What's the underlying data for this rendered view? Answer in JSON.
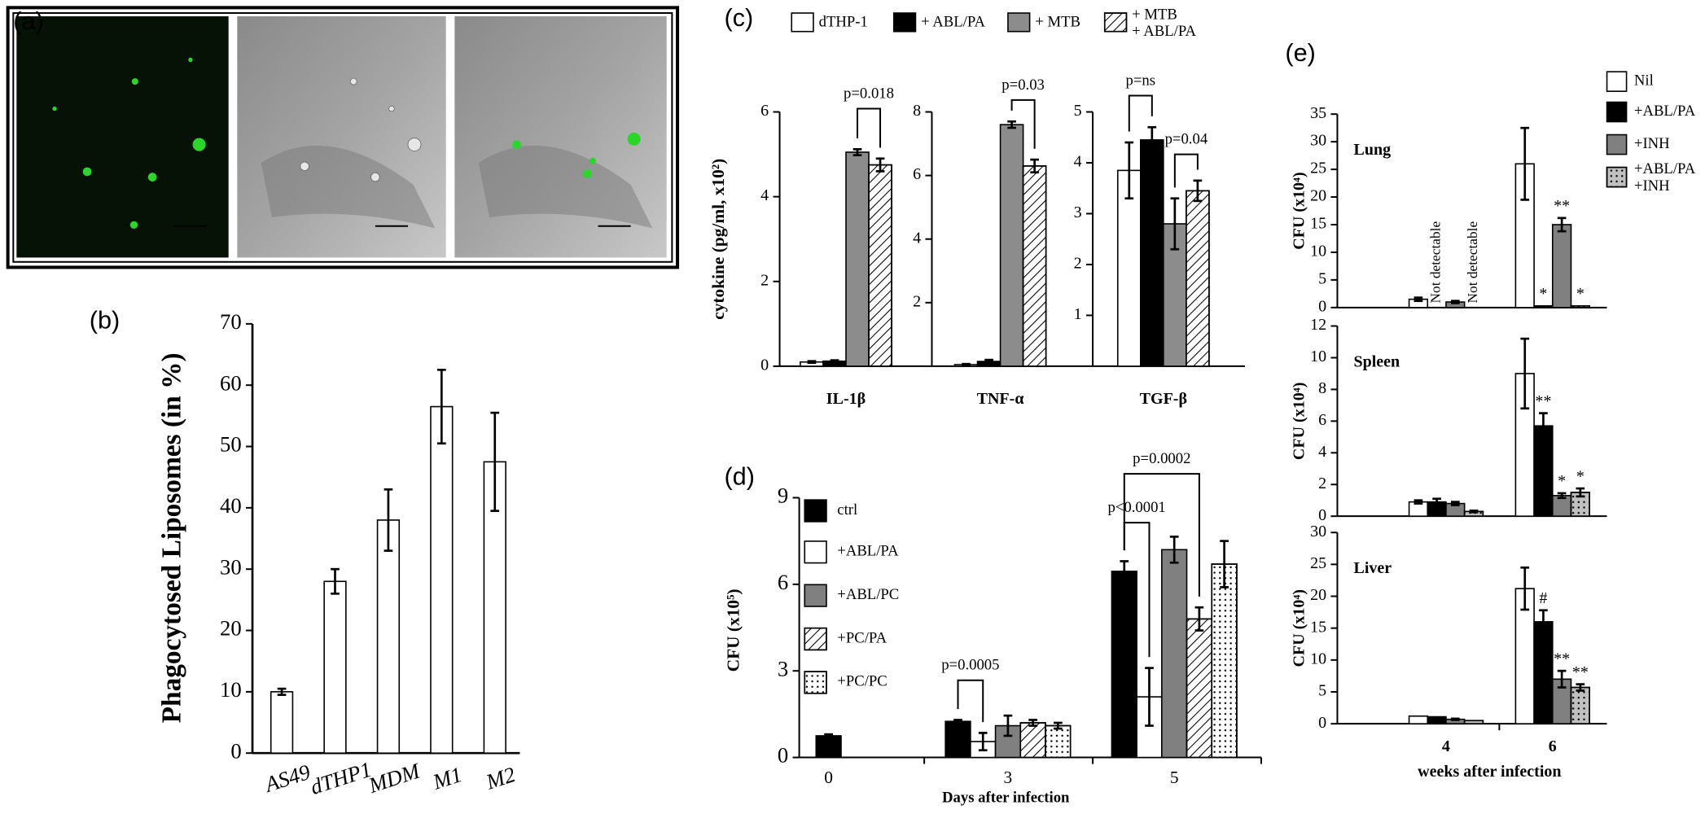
{
  "image_panel": {
    "label": "(a)"
  },
  "chart_data": [
    {
      "type": "bar",
      "panel_label": "(b)",
      "ylabel": "Phagocytosed Liposomes (in %)",
      "categories": [
        "AS49",
        "dTHP1",
        "MDM",
        "M1",
        "M2"
      ],
      "values": [
        10,
        28,
        38,
        56.5,
        47.5
      ],
      "errors": [
        0.5,
        2,
        5,
        6,
        8
      ],
      "color": "#ffffff",
      "ylim": [
        0,
        70
      ],
      "yticks": [
        0,
        10,
        20,
        30,
        40,
        50,
        60,
        70
      ]
    },
    {
      "type": "bar",
      "panel_label": "(c)",
      "ylabel": "cytokine (pg/ml, x10²)",
      "categories": [
        "IL-1β",
        "TNF-α",
        "TGF-β"
      ],
      "axes": [
        {
          "ylim": [
            0,
            6
          ],
          "yticks": [
            0,
            2,
            4,
            6
          ]
        },
        {
          "ylim": [
            0,
            8
          ],
          "yticks": [
            2,
            4,
            6,
            8
          ]
        },
        {
          "ylim": [
            0,
            5
          ],
          "yticks": [
            1,
            2,
            3,
            4,
            5
          ]
        }
      ],
      "series": [
        {
          "name": "dTHP-1",
          "color": "#ffffff",
          "values": [
            0.1,
            0.05,
            3.85
          ],
          "errors": [
            0.02,
            0.02,
            0.55
          ]
        },
        {
          "name": "+ ABL/PA",
          "color": "#000000",
          "values": [
            0.12,
            0.15,
            4.45
          ],
          "errors": [
            0.02,
            0.05,
            0.25
          ]
        },
        {
          "name": "+ MTB",
          "color": "#8c8c8c",
          "values": [
            5.05,
            7.6,
            2.8
          ],
          "errors": [
            0.07,
            0.1,
            0.5
          ]
        },
        {
          "name": "+ MTB\n+ ABL/PA",
          "color": "#ffffff",
          "pattern": "hatch",
          "values": [
            4.75,
            6.3,
            3.45
          ],
          "errors": [
            0.15,
            0.2,
            0.2
          ]
        }
      ],
      "annotations": [
        "p=0.018",
        "p=0.03",
        "p=ns",
        "p=0.04"
      ]
    },
    {
      "type": "bar",
      "panel_label": "(d)",
      "ylabel": "CFU (x10⁵)",
      "xlabel": "Days after infection",
      "categories": [
        "0",
        "3",
        "5"
      ],
      "ylim": [
        0,
        9
      ],
      "yticks": [
        0,
        3,
        6,
        9
      ],
      "series": [
        {
          "name": "ctrl",
          "color": "#000000",
          "values": [
            0.75,
            1.25,
            6.45
          ],
          "errors": [
            0.05,
            0.05,
            0.35
          ]
        },
        {
          "name": "+ABL/PA",
          "color": "#ffffff",
          "values": [
            null,
            0.55,
            2.1
          ],
          "errors": [
            null,
            0.3,
            1.0
          ]
        },
        {
          "name": "+ABL/PC",
          "color": "#808080",
          "values": [
            null,
            1.1,
            7.2
          ],
          "errors": [
            null,
            0.35,
            0.45
          ]
        },
        {
          "name": "+PC/PA",
          "color": "#ffffff",
          "pattern": "hatch",
          "values": [
            null,
            1.2,
            4.8
          ],
          "errors": [
            null,
            0.1,
            0.4
          ]
        },
        {
          "name": "+PC/PC",
          "color": "#ffffff",
          "pattern": "dots",
          "values": [
            null,
            1.1,
            6.7
          ],
          "errors": [
            null,
            0.1,
            0.8
          ]
        }
      ],
      "annotations": [
        "p=0.0005",
        "p<0.0001",
        "p=0.0002"
      ]
    },
    {
      "type": "bar",
      "panel_label": "(e)",
      "xlabel": "weeks after infection",
      "categories": [
        "4",
        "6"
      ],
      "series": [
        {
          "name": "Nil",
          "color": "#ffffff"
        },
        {
          "name": "+ABL/PA",
          "color": "#000000"
        },
        {
          "name": "+INH",
          "color": "#808080"
        },
        {
          "name": "+ABL/PA\n+INH",
          "color": "#c0c0c0",
          "pattern": "dots"
        }
      ],
      "subplots": [
        {
          "title": "Lung",
          "ylabel": "CFU (x10⁴)",
          "ylim": [
            0,
            35
          ],
          "yticks": [
            0,
            5,
            10,
            15,
            20,
            25,
            30,
            35
          ],
          "series": [
            {
              "values": [
                1.5,
                26
              ],
              "errors": [
                0.3,
                6.5
              ],
              "notes": [
                null,
                null
              ]
            },
            {
              "values": [
                null,
                0.3
              ],
              "errors": [
                null,
                null
              ],
              "notes": [
                "Not detectable",
                "*"
              ]
            },
            {
              "values": [
                1,
                15
              ],
              "errors": [
                0.2,
                1.2
              ],
              "notes": [
                null,
                "**"
              ]
            },
            {
              "values": [
                null,
                0.3
              ],
              "errors": [
                null,
                null
              ],
              "notes": [
                "Not detectable",
                "*"
              ]
            }
          ]
        },
        {
          "title": "Spleen",
          "ylabel": "CFU (x10⁴)",
          "ylim": [
            0,
            12
          ],
          "yticks": [
            0,
            2,
            4,
            6,
            8,
            10,
            12
          ],
          "series": [
            {
              "values": [
                0.9,
                9
              ],
              "errors": [
                0.1,
                2.2
              ],
              "notes": [
                null,
                null
              ]
            },
            {
              "values": [
                0.9,
                5.7
              ],
              "errors": [
                0.2,
                0.8
              ],
              "notes": [
                null,
                "**"
              ]
            },
            {
              "values": [
                0.8,
                1.3
              ],
              "errors": [
                0.1,
                0.15
              ],
              "notes": [
                null,
                "*"
              ]
            },
            {
              "values": [
                0.3,
                1.5
              ],
              "errors": [
                0.05,
                0.25
              ],
              "notes": [
                null,
                "*"
              ]
            }
          ]
        },
        {
          "title": "Liver",
          "ylabel": "CFU (x10⁴)",
          "ylim": [
            0,
            30
          ],
          "yticks": [
            0,
            5,
            10,
            15,
            20,
            25,
            30
          ],
          "series": [
            {
              "values": [
                1.2,
                21.2
              ],
              "errors": [
                null,
                3.3
              ],
              "notes": [
                null,
                null
              ]
            },
            {
              "values": [
                1.1,
                16
              ],
              "errors": [
                null,
                1.8
              ],
              "notes": [
                null,
                "#"
              ]
            },
            {
              "values": [
                0.7,
                7
              ],
              "errors": [
                0.1,
                1.3
              ],
              "notes": [
                null,
                "**"
              ]
            },
            {
              "values": [
                0.5,
                5.7
              ],
              "errors": [
                null,
                0.5
              ],
              "notes": [
                null,
                "**"
              ]
            }
          ]
        }
      ]
    }
  ]
}
